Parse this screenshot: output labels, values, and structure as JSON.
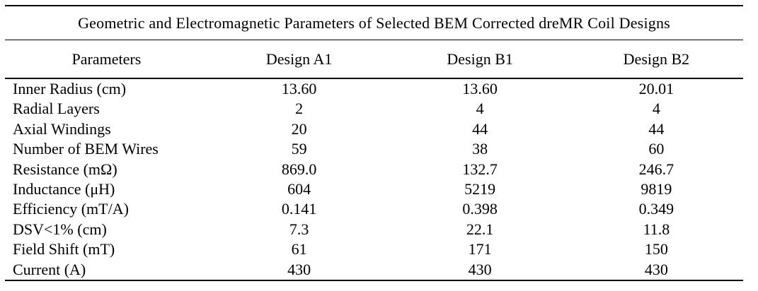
{
  "page": {
    "background_color": "#ffffff",
    "text_color": "#000000",
    "rule_color": "#000000"
  },
  "table": {
    "title": "Geometric and Electromagnetic Parameters of Selected BEM Corrected dreMR Coil Designs",
    "columns": [
      "Parameters",
      "Design A1",
      "Design B1",
      "Design B2"
    ],
    "rows": [
      {
        "parameter": "Inner Radius (cm)",
        "values": [
          "13.60",
          "13.60",
          "20.01"
        ]
      },
      {
        "parameter": "Radial Layers",
        "values": [
          "2",
          "4",
          "4"
        ]
      },
      {
        "parameter": "Axial Windings",
        "values": [
          "20",
          "44",
          "44"
        ]
      },
      {
        "parameter": "Number of BEM Wires",
        "values": [
          "59",
          "38",
          "60"
        ]
      },
      {
        "parameter": "Resistance (mΩ)",
        "values": [
          "869.0",
          "132.7",
          "246.7"
        ]
      },
      {
        "parameter": "Inductance (μH)",
        "values": [
          "604",
          "5219",
          "9819"
        ]
      },
      {
        "parameter": "Efficiency (mT/A)",
        "values": [
          "0.141",
          "0.398",
          "0.349"
        ]
      },
      {
        "parameter": "DSV<1% (cm)",
        "values": [
          "7.3",
          "22.1",
          "11.8"
        ]
      },
      {
        "parameter": "Field Shift (mT)",
        "values": [
          "61",
          "171",
          "150"
        ]
      },
      {
        "parameter": "Current (A)",
        "values": [
          "430",
          "430",
          "430"
        ]
      }
    ]
  },
  "chart_data": {
    "type": "table",
    "title": "Geometric and Electromagnetic Parameters of Selected BEM Corrected dreMR Coil Designs",
    "categories": [
      "Design A1",
      "Design B1",
      "Design B2"
    ],
    "series": [
      {
        "name": "Inner Radius (cm)",
        "values": [
          13.6,
          13.6,
          20.01
        ]
      },
      {
        "name": "Radial Layers",
        "values": [
          2,
          4,
          4
        ]
      },
      {
        "name": "Axial Windings",
        "values": [
          20,
          44,
          44
        ]
      },
      {
        "name": "Number of BEM Wires",
        "values": [
          59,
          38,
          60
        ]
      },
      {
        "name": "Resistance (mΩ)",
        "values": [
          869.0,
          132.7,
          246.7
        ]
      },
      {
        "name": "Inductance (μH)",
        "values": [
          604,
          5219,
          9819
        ]
      },
      {
        "name": "Efficiency (mT/A)",
        "values": [
          0.141,
          0.398,
          0.349
        ]
      },
      {
        "name": "DSV<1% (cm)",
        "values": [
          7.3,
          22.1,
          11.8
        ]
      },
      {
        "name": "Field Shift (mT)",
        "values": [
          61,
          171,
          150
        ]
      },
      {
        "name": "Current (A)",
        "values": [
          430,
          430,
          430
        ]
      }
    ]
  }
}
